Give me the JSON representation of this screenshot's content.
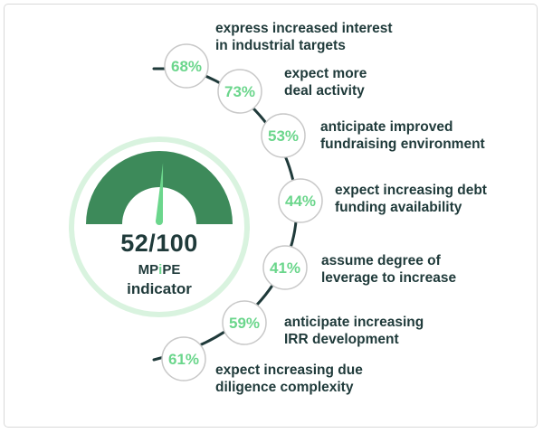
{
  "colors": {
    "accent": "#6bd68c",
    "gauge_dark": "#3d8a5a",
    "gauge_ring": "#d9f3df",
    "text": "#1f3a3a",
    "connector": "#1f3a3a"
  },
  "gauge": {
    "score": "52/100",
    "brand_prefix": "MP",
    "brand_mark": "i",
    "brand_suffix": "PE",
    "indicator": "indicator",
    "value": 52,
    "max": 100
  },
  "stats": [
    {
      "value": "68%",
      "line1": "express increased interest",
      "line2": "in industrial targets"
    },
    {
      "value": "73%",
      "line1": "expect more",
      "line2": "deal activity"
    },
    {
      "value": "53%",
      "line1": "anticipate improved",
      "line2": "fundraising environment"
    },
    {
      "value": "44%",
      "line1": "expect increasing debt",
      "line2": "funding availability"
    },
    {
      "value": "41%",
      "line1": "assume degree of",
      "line2": "leverage to increase"
    },
    {
      "value": "59%",
      "line1": "anticipate increasing",
      "line2": "IRR development"
    },
    {
      "value": "61%",
      "line1": "expect increasing due",
      "line2": "diligence complexity"
    }
  ]
}
